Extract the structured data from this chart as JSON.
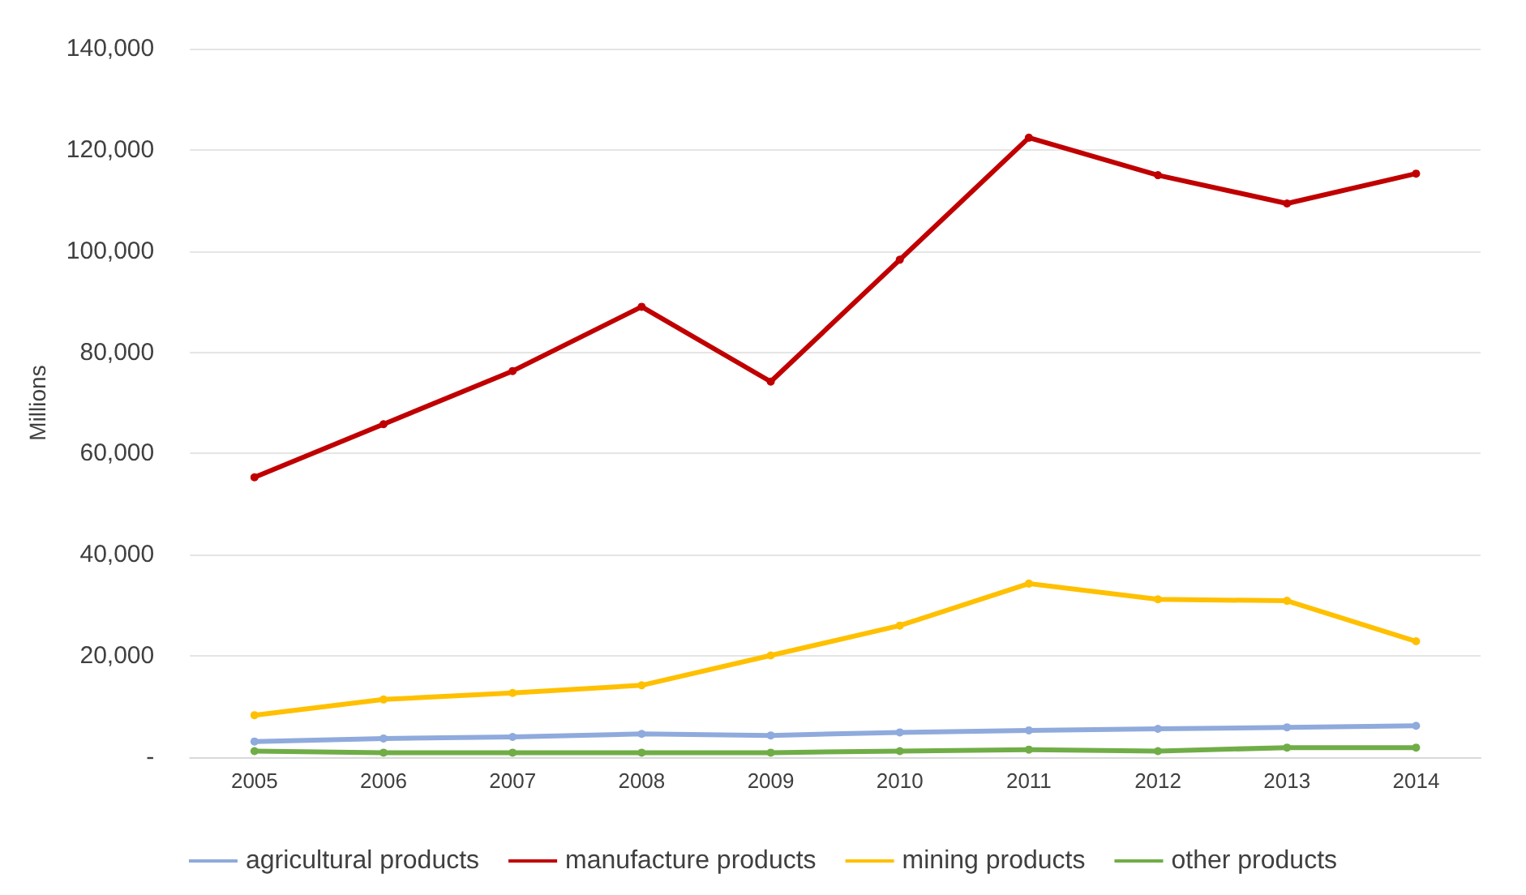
{
  "chart_data": {
    "type": "line",
    "ylabel": "Millions",
    "categories": [
      "2005",
      "2006",
      "2007",
      "2008",
      "2009",
      "2010",
      "2011",
      "2012",
      "2013",
      "2014"
    ],
    "series": [
      {
        "name": "agricultural products",
        "color": "#8faadc",
        "values": [
          3100,
          3700,
          4000,
          4600,
          4300,
          4900,
          5300,
          5600,
          5900,
          6200
        ]
      },
      {
        "name": "manufacture products",
        "color": "#c00000",
        "values": [
          55300,
          65800,
          76300,
          89000,
          74200,
          98300,
          122400,
          115000,
          109400,
          115300
        ]
      },
      {
        "name": "mining products",
        "color": "#ffc000",
        "values": [
          8300,
          11400,
          12700,
          14200,
          20100,
          26000,
          34300,
          31200,
          30900,
          22900
        ]
      },
      {
        "name": "other products",
        "color": "#70ad47",
        "values": [
          1200,
          900,
          900,
          900,
          900,
          1200,
          1500,
          1200,
          1900,
          1900
        ]
      }
    ],
    "ylim": [
      0,
      140000
    ],
    "yticks": [
      {
        "value": 0,
        "label": "-"
      },
      {
        "value": 20000,
        "label": "20,000"
      },
      {
        "value": 40000,
        "label": "40,000"
      },
      {
        "value": 60000,
        "label": "60,000"
      },
      {
        "value": 80000,
        "label": "80,000"
      },
      {
        "value": 100000,
        "label": "100,000"
      },
      {
        "value": 120000,
        "label": "120,000"
      },
      {
        "value": 140000,
        "label": "140,000"
      }
    ],
    "grid": "y",
    "legend": "bottom",
    "marker": "circle",
    "line_style": "solid"
  }
}
